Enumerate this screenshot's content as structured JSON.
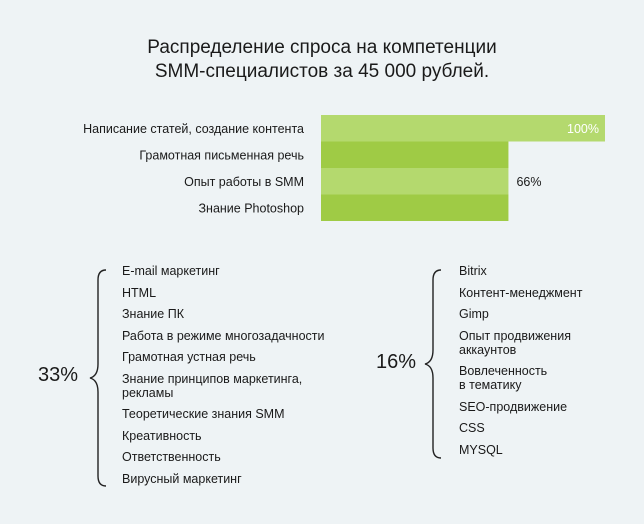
{
  "title_line1": "Распределение спроса на компетенции",
  "title_line2": "SMM-специалистов за 45 000 рублей.",
  "chart_data": {
    "type": "bar",
    "orientation": "horizontal",
    "categories": [
      "Написание статей, создание контента",
      "Грамотная письменная речь",
      "Опыт работы в SMM",
      "Знание Photoshop"
    ],
    "values": [
      100,
      66,
      66,
      66
    ],
    "data_labels": [
      "100%",
      "",
      "66%",
      ""
    ],
    "xlim": [
      0,
      100
    ],
    "colors": {
      "light": "#b4d96e",
      "dark": "#9fcb45"
    }
  },
  "group_33": {
    "percent": "33%",
    "items": [
      "E-mail маркетинг",
      "HTML",
      "Знание ПК",
      "Работа  в режиме многозадачности",
      "Грамотная устная речь",
      "Знание принципов маркетинга,\nрекламы",
      "Теоретические знания SMM",
      "Креативность",
      "Ответственность",
      "Вирусный маркетинг"
    ]
  },
  "group_16": {
    "percent": "16%",
    "items": [
      "Bitrix",
      "Контент-менеджмент",
      "Gimp",
      "Опыт продвижения\nаккаунтов",
      "Вовлеченность\nв тематику",
      "SEO-продвижение",
      "CSS",
      "MYSQL"
    ]
  }
}
